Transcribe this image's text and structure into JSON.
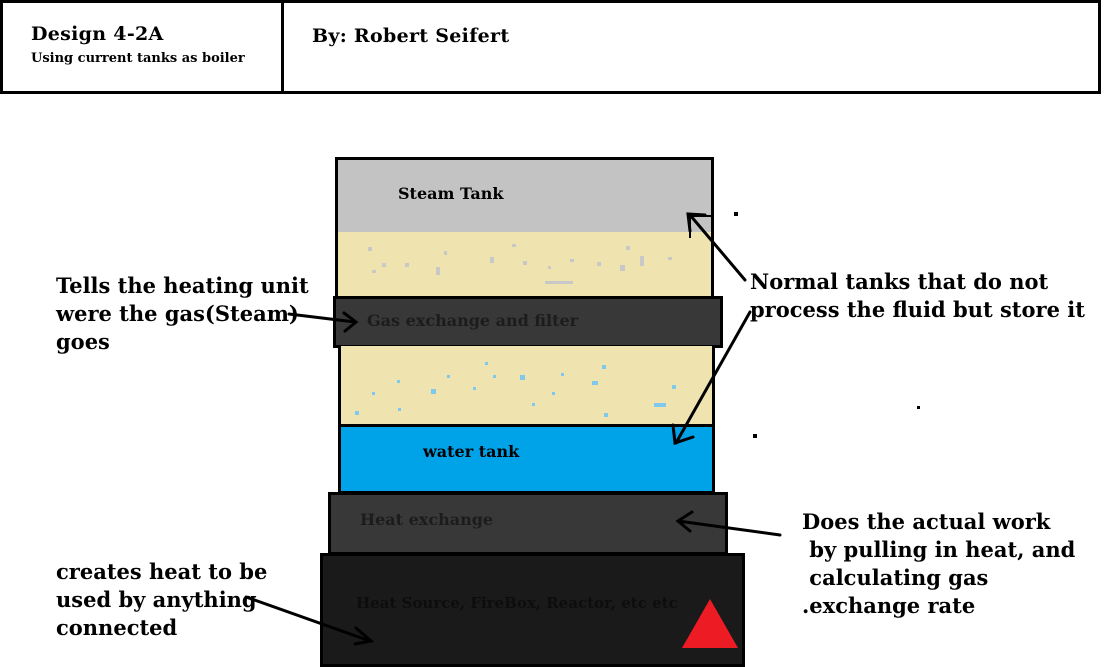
{
  "header": {
    "design_title": "Design 4-2A",
    "design_subtitle": "Using current tanks as boiler",
    "author": "By: Robert Seifert"
  },
  "layers": {
    "steam_tank": "Steam Tank",
    "gas_exchange": "Gas exchange and filter",
    "water_tank": "water tank",
    "heat_exchange": "Heat exchange",
    "heat_source": "Heat Source, FireBox, Reactor, etc etc"
  },
  "annotations": {
    "gas_note": [
      "Tells the heating unit",
      "were the gas(Steam)",
      "goes"
    ],
    "tanks_note": [
      "Normal tanks that do not",
      "process the fluid but store it"
    ],
    "work_note": [
      "Does the actual work",
      " by pulling in heat, and",
      " calculating gas",
      ".exchange rate"
    ],
    "heat_note": [
      "creates heat to be",
      "used by anything",
      "connected"
    ]
  },
  "colors": {
    "steam": "#c3c3c3",
    "fluid": "#efe4b0",
    "water": "#00a2e8",
    "gas_exchange": "#383838",
    "heat_exchange": "#383838",
    "heat_source": "#1a1a1a",
    "warning": "#ed1c24"
  },
  "icons": {
    "warning": "red-triangle-icon"
  }
}
